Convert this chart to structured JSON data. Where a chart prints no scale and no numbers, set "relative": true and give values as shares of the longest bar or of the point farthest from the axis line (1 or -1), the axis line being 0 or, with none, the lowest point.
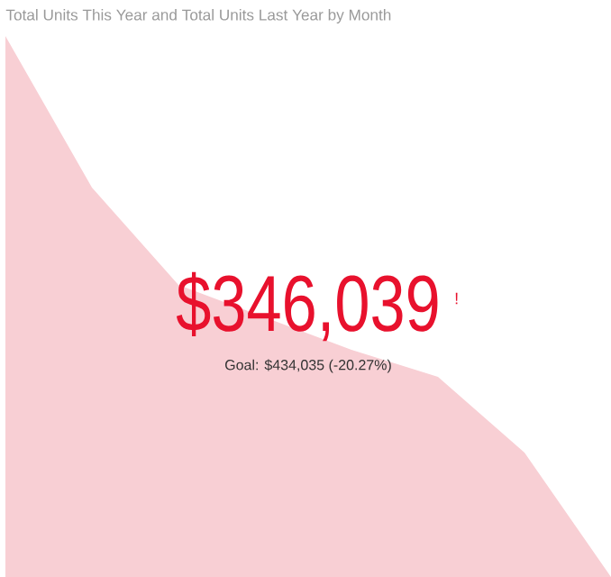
{
  "chart_data": {
    "type": "area",
    "title": "Total Units This Year and Total Units Last Year by Month",
    "categories": [
      null,
      null,
      null,
      null,
      null,
      null,
      null,
      null
    ],
    "values": [
      1,
      0.72,
      0.54,
      0.48,
      0.42,
      0.37,
      0.23,
      0
    ],
    "color": "#f8cfd4",
    "relative": true,
    "annotations": [
      "$346,039",
      "!",
      "Goal: $434,035 (-20.27%)"
    ]
  }
}
